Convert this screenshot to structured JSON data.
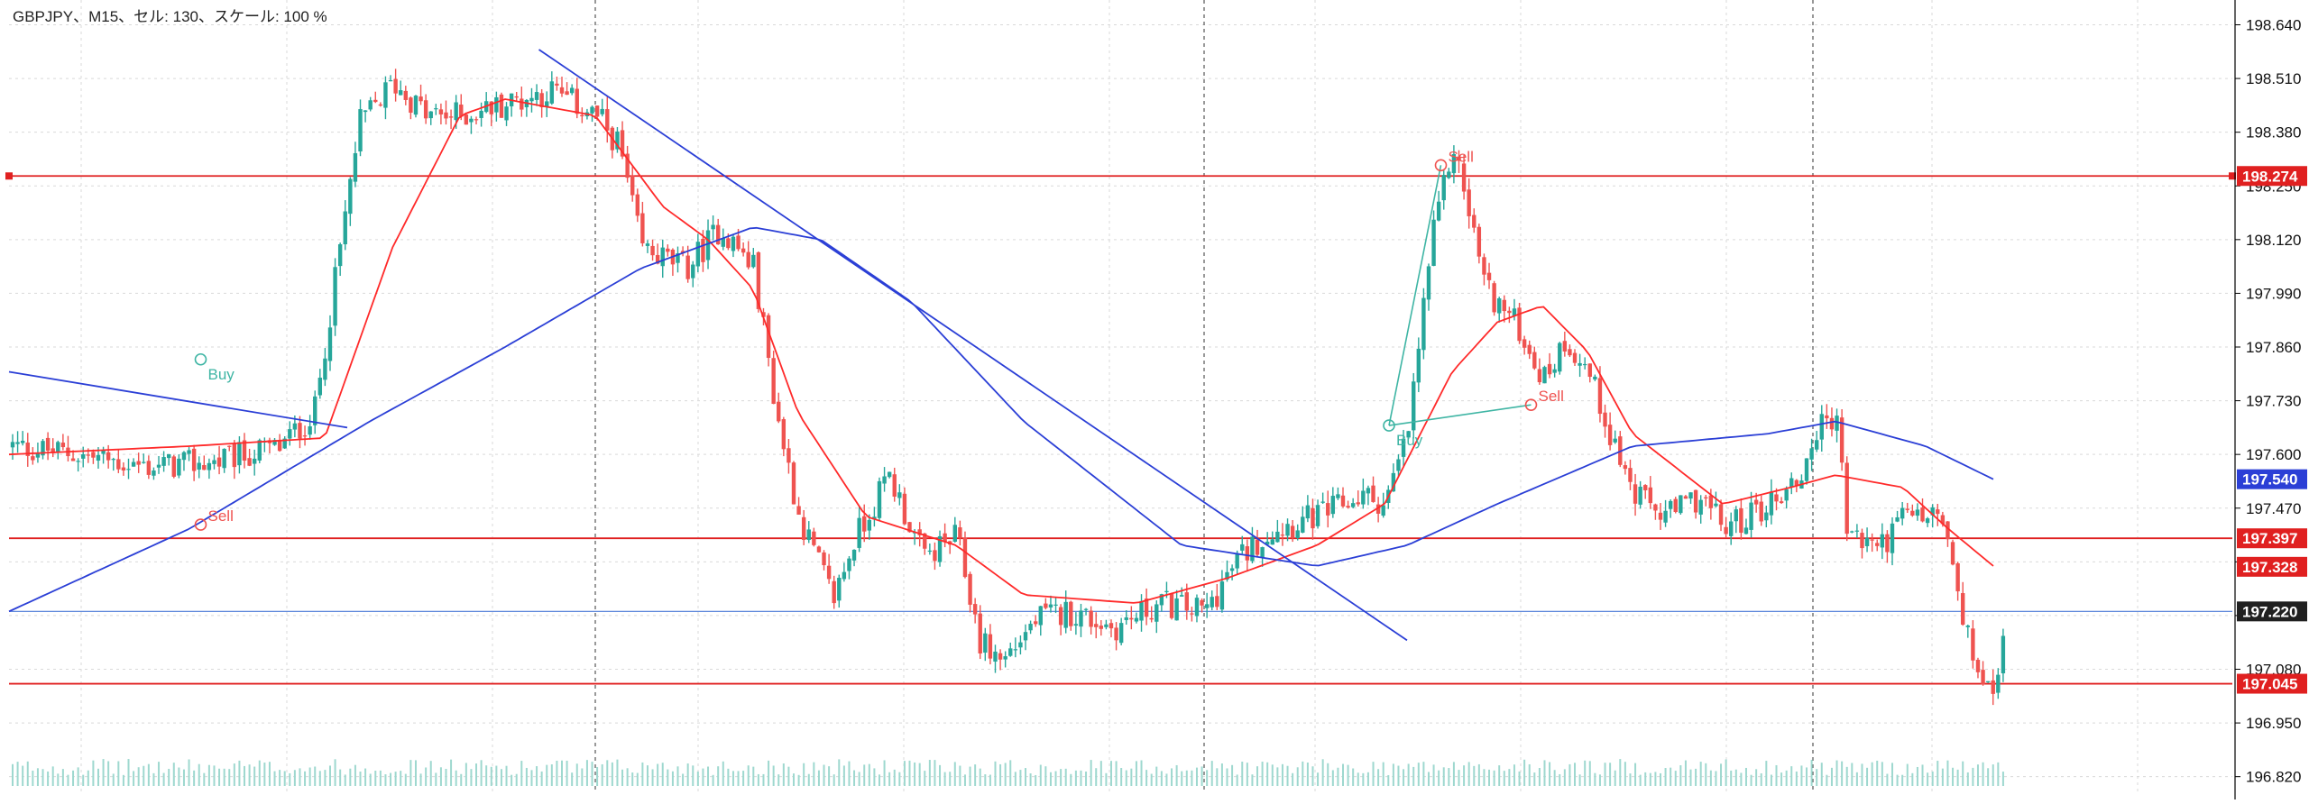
{
  "header": {
    "symbol": "GBPJPY",
    "timeframe": "M15",
    "sep": "、",
    "cell_label": "セル: 130",
    "scale_label": "スケール: 100 %"
  },
  "colors": {
    "bull": "#26a69a",
    "bear": "#ef5350",
    "ma_fast": "#ff2a2a",
    "ma_slow": "#2b3fd6",
    "trendline": "#2b3fd6",
    "hline_red": "#e02020",
    "current_price_line": "#4a78d6",
    "grid": "#d9d9d9",
    "session_sep": "#555555",
    "volume": "#9ed8cf",
    "signal": "#3fb5a4"
  },
  "chart_data": {
    "type": "candlestick",
    "symbol": "GBPJPY",
    "timeframe": "M15",
    "y_axis": {
      "ylim": [
        196.78,
        198.7
      ],
      "ticks": [
        "198.640",
        "198.510",
        "198.380",
        "198.250",
        "198.120",
        "197.990",
        "197.860",
        "197.730",
        "197.600",
        "197.470",
        "197.340",
        "197.210",
        "197.080",
        "196.950",
        "196.820"
      ]
    },
    "price_labels": [
      {
        "value": "198.274",
        "kind": "hline"
      },
      {
        "value": "197.540",
        "kind": "ma_slow"
      },
      {
        "value": "197.397",
        "kind": "hline"
      },
      {
        "value": "197.328",
        "kind": "ma_fast"
      },
      {
        "value": "197.220",
        "kind": "current"
      },
      {
        "value": "197.045",
        "kind": "hline"
      }
    ],
    "horizontal_lines": [
      198.274,
      197.397,
      197.045
    ],
    "current_price": 197.22,
    "session_separators": [
      0.26,
      0.53,
      0.8
    ],
    "trendlines": [
      {
        "from": [
          0.0,
          197.8
        ],
        "to": [
          0.15,
          197.665
        ]
      },
      {
        "from": [
          0.235,
          198.58
        ],
        "to": [
          0.62,
          197.15
        ]
      }
    ],
    "candle_keypoints": [
      [
        0.0,
        197.62
      ],
      [
        0.03,
        197.6
      ],
      [
        0.06,
        197.57
      ],
      [
        0.09,
        197.58
      ],
      [
        0.12,
        197.62
      ],
      [
        0.135,
        197.7
      ],
      [
        0.145,
        198.05
      ],
      [
        0.155,
        198.4
      ],
      [
        0.17,
        198.5
      ],
      [
        0.185,
        198.42
      ],
      [
        0.2,
        198.42
      ],
      [
        0.22,
        198.45
      ],
      [
        0.24,
        198.48
      ],
      [
        0.26,
        198.42
      ],
      [
        0.27,
        198.35
      ],
      [
        0.28,
        198.1
      ],
      [
        0.3,
        198.05
      ],
      [
        0.315,
        198.15
      ],
      [
        0.33,
        198.05
      ],
      [
        0.34,
        197.7
      ],
      [
        0.35,
        197.45
      ],
      [
        0.365,
        197.25
      ],
      [
        0.375,
        197.4
      ],
      [
        0.39,
        197.55
      ],
      [
        0.405,
        197.35
      ],
      [
        0.42,
        197.4
      ],
      [
        0.43,
        197.15
      ],
      [
        0.44,
        197.1
      ],
      [
        0.455,
        197.2
      ],
      [
        0.47,
        197.22
      ],
      [
        0.49,
        197.18
      ],
      [
        0.51,
        197.24
      ],
      [
        0.53,
        197.22
      ],
      [
        0.545,
        197.35
      ],
      [
        0.56,
        197.42
      ],
      [
        0.58,
        197.45
      ],
      [
        0.6,
        197.5
      ],
      [
        0.61,
        197.48
      ],
      [
        0.62,
        197.65
      ],
      [
        0.63,
        198.1
      ],
      [
        0.64,
        198.35
      ],
      [
        0.655,
        198.0
      ],
      [
        0.67,
        197.9
      ],
      [
        0.68,
        197.78
      ],
      [
        0.69,
        197.88
      ],
      [
        0.7,
        197.8
      ],
      [
        0.71,
        197.65
      ],
      [
        0.72,
        197.5
      ],
      [
        0.735,
        197.45
      ],
      [
        0.75,
        197.5
      ],
      [
        0.76,
        197.42
      ],
      [
        0.78,
        197.48
      ],
      [
        0.795,
        197.55
      ],
      [
        0.8,
        197.65
      ],
      [
        0.81,
        197.7
      ],
      [
        0.815,
        197.4
      ],
      [
        0.83,
        197.38
      ],
      [
        0.84,
        197.45
      ],
      [
        0.855,
        197.45
      ],
      [
        0.86,
        197.38
      ],
      [
        0.865,
        197.2
      ],
      [
        0.875,
        197.05
      ],
      [
        0.88,
        197.0
      ],
      [
        0.885,
        197.22
      ]
    ],
    "ma_fast_keypoints": [
      [
        0.0,
        197.6
      ],
      [
        0.08,
        197.62
      ],
      [
        0.14,
        197.64
      ],
      [
        0.17,
        198.1
      ],
      [
        0.2,
        198.42
      ],
      [
        0.22,
        198.46
      ],
      [
        0.26,
        198.42
      ],
      [
        0.29,
        198.2
      ],
      [
        0.31,
        198.12
      ],
      [
        0.33,
        198.0
      ],
      [
        0.35,
        197.7
      ],
      [
        0.38,
        197.45
      ],
      [
        0.42,
        197.38
      ],
      [
        0.45,
        197.26
      ],
      [
        0.5,
        197.24
      ],
      [
        0.54,
        197.3
      ],
      [
        0.58,
        197.38
      ],
      [
        0.61,
        197.48
      ],
      [
        0.64,
        197.8
      ],
      [
        0.66,
        197.92
      ],
      [
        0.68,
        197.96
      ],
      [
        0.7,
        197.85
      ],
      [
        0.72,
        197.65
      ],
      [
        0.76,
        197.48
      ],
      [
        0.79,
        197.52
      ],
      [
        0.81,
        197.55
      ],
      [
        0.84,
        197.52
      ],
      [
        0.86,
        197.42
      ],
      [
        0.88,
        197.33
      ]
    ],
    "ma_slow_keypoints": [
      [
        0.0,
        197.22
      ],
      [
        0.08,
        197.42
      ],
      [
        0.16,
        197.68
      ],
      [
        0.22,
        197.86
      ],
      [
        0.28,
        198.05
      ],
      [
        0.33,
        198.15
      ],
      [
        0.36,
        198.12
      ],
      [
        0.4,
        197.97
      ],
      [
        0.45,
        197.68
      ],
      [
        0.52,
        197.38
      ],
      [
        0.58,
        197.33
      ],
      [
        0.62,
        197.38
      ],
      [
        0.66,
        197.48
      ],
      [
        0.72,
        197.62
      ],
      [
        0.78,
        197.65
      ],
      [
        0.81,
        197.68
      ],
      [
        0.85,
        197.62
      ],
      [
        0.88,
        197.54
      ]
    ],
    "signals": [
      {
        "label": "Buy",
        "x": 0.085,
        "price": 197.83,
        "dir": "up"
      },
      {
        "label": "Sell",
        "x": 0.085,
        "price": 197.43,
        "dir": "down"
      },
      {
        "label": "Buy",
        "x": 0.612,
        "price": 197.67,
        "dir": "up"
      },
      {
        "label": "Sell",
        "x": 0.635,
        "price": 198.3,
        "dir": "down"
      },
      {
        "label": "Sell",
        "x": 0.675,
        "price": 197.72,
        "dir": "down"
      }
    ],
    "signal_links": [
      [
        2,
        3
      ],
      [
        2,
        4
      ]
    ]
  }
}
